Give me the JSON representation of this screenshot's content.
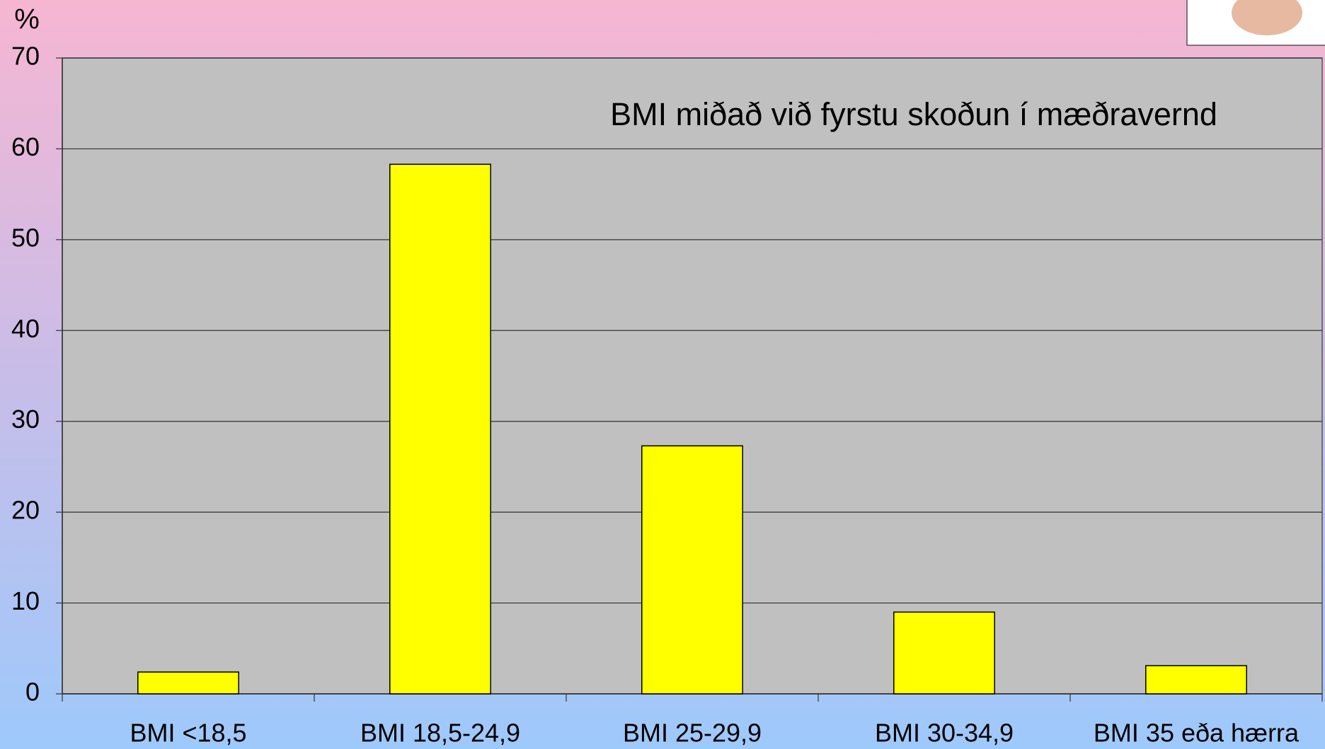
{
  "chart_data": {
    "type": "bar",
    "title": "BMI miðað við fyrstu skoðun í mæðravernd",
    "y_label": "%",
    "categories": [
      "BMI <18,5",
      "BMI 18,5-24,9",
      "BMI 25-29,9",
      "BMI 30-34,9",
      "BMI 35 eða hærra"
    ],
    "values": [
      2.4,
      58.3,
      27.3,
      9.0,
      3.1
    ],
    "color": "#ffff00",
    "ylim": [
      0,
      70
    ],
    "yticks": [
      0,
      10,
      20,
      30,
      40,
      50,
      60,
      70
    ],
    "grid": true
  }
}
